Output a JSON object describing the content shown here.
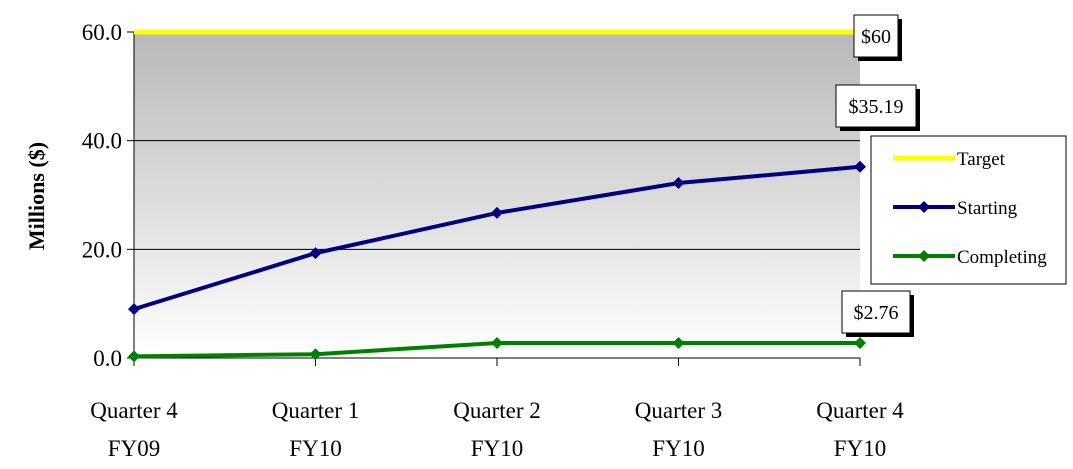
{
  "chart_data": {
    "type": "line",
    "title": "",
    "ylabel": "Millions ($)",
    "xlabel": "",
    "ylim": [
      0,
      60
    ],
    "yticks": [
      "0.0",
      "20.0",
      "40.0",
      "60.0"
    ],
    "grid": true,
    "legend_position": "right",
    "categories": [
      [
        "Quarter 4",
        "FY09"
      ],
      [
        "Quarter 1",
        "FY10"
      ],
      [
        "Quarter 2",
        "FY10"
      ],
      [
        "Quarter 3",
        "FY10"
      ],
      [
        "Quarter 4",
        "FY10"
      ]
    ],
    "series": [
      {
        "name": "Target",
        "color": "#FFFF00",
        "marker": "none",
        "values": [
          60,
          60,
          60,
          60,
          60
        ]
      },
      {
        "name": "Starting",
        "color": "#000080",
        "marker": "diamond",
        "values": [
          9.0,
          19.3,
          26.7,
          32.2,
          35.19
        ]
      },
      {
        "name": "Completing",
        "color": "#008000",
        "marker": "diamond",
        "values": [
          0.3,
          0.7,
          2.76,
          2.76,
          2.76
        ]
      }
    ],
    "annotations": [
      {
        "text": "$60",
        "series": "Target",
        "index": 4
      },
      {
        "text": "$35.19",
        "series": "Starting",
        "index": 4
      },
      {
        "text": "$2.76",
        "series": "Completing",
        "index": 4
      }
    ]
  }
}
